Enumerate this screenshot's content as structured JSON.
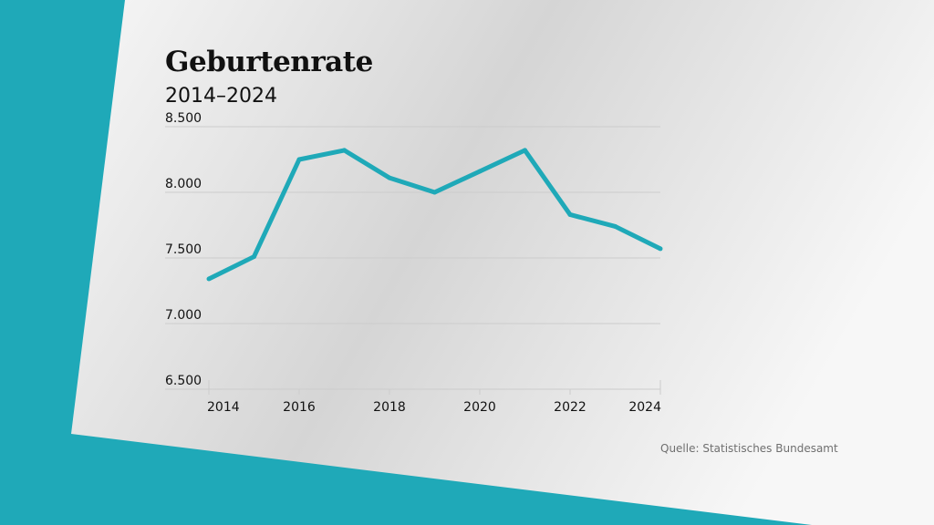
{
  "colors": {
    "accent": "#1fa9b8",
    "panel_light": "#f7f7f7",
    "panel_shade": "#d5d5d5",
    "gridline": "#cccccc",
    "text": "#111111",
    "source_text": "#6f6f6f"
  },
  "source": "Quelle: Statistisches Bundesamt",
  "chart_data": {
    "type": "line",
    "title": "Geburtenrate",
    "subtitle": "2014–2024",
    "xlabel": "",
    "ylabel": "",
    "x": [
      2014,
      2015,
      2016,
      2017,
      2018,
      2019,
      2020,
      2021,
      2022,
      2023,
      2024
    ],
    "series": [
      {
        "values": [
          7340,
          7510,
          8250,
          8320,
          8110,
          8000,
          8160,
          8320,
          7830,
          7740,
          7570
        ]
      }
    ],
    "xlim": [
      2014,
      2024
    ],
    "ylim": [
      6500,
      8500
    ],
    "yticks": [
      6500,
      7000,
      7500,
      8000,
      8500
    ],
    "ytick_labels": [
      "6.500",
      "7.000",
      "7.500",
      "8.000",
      "8.500"
    ],
    "xticks": [
      2014,
      2016,
      2018,
      2020,
      2022,
      2024
    ],
    "xtick_labels": [
      "2014",
      "2016",
      "2018",
      "2020",
      "2022",
      "2024"
    ],
    "grid": true,
    "legend": false
  }
}
